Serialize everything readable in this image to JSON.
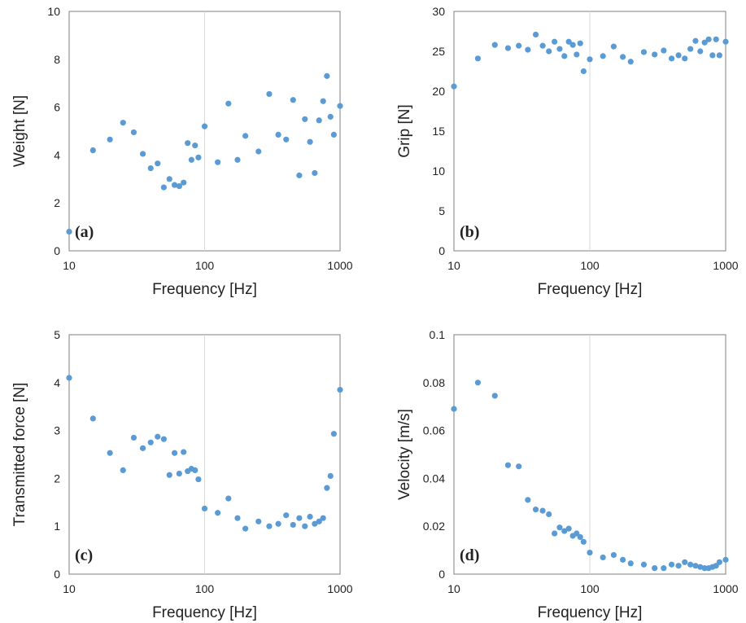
{
  "style": {
    "marker_color": "#5b9bd5",
    "grid_color": "#d9d9d9",
    "axis_color": "#7f7f7f"
  },
  "chart_data": [
    {
      "type": "scatter",
      "panel_label": "(a)",
      "xlabel": "Frequency [Hz]",
      "ylabel": "Weight [N]",
      "xscale": "log",
      "xlim": [
        10,
        1000
      ],
      "ylim": [
        0,
        10
      ],
      "xticks": [
        10,
        100,
        1000
      ],
      "xtick_labels": [
        "10",
        "100",
        "1000"
      ],
      "yticks": [
        0,
        2,
        4,
        6,
        8,
        10
      ],
      "ytick_labels": [
        "0",
        "2",
        "4",
        "6",
        "8",
        "10"
      ],
      "grid": true,
      "points": [
        [
          10,
          0.8
        ],
        [
          15,
          4.2
        ],
        [
          20,
          4.65
        ],
        [
          25,
          5.35
        ],
        [
          30,
          4.95
        ],
        [
          35,
          4.05
        ],
        [
          40,
          3.45
        ],
        [
          45,
          3.65
        ],
        [
          50,
          2.65
        ],
        [
          55,
          3.0
        ],
        [
          60,
          2.75
        ],
        [
          65,
          2.7
        ],
        [
          70,
          2.85
        ],
        [
          75,
          4.5
        ],
        [
          80,
          3.8
        ],
        [
          85,
          4.4
        ],
        [
          90,
          3.9
        ],
        [
          100,
          5.2
        ],
        [
          125,
          3.7
        ],
        [
          150,
          6.15
        ],
        [
          175,
          3.8
        ],
        [
          200,
          4.8
        ],
        [
          250,
          4.15
        ],
        [
          300,
          6.55
        ],
        [
          350,
          4.85
        ],
        [
          400,
          4.65
        ],
        [
          450,
          6.3
        ],
        [
          500,
          3.15
        ],
        [
          550,
          5.5
        ],
        [
          600,
          4.55
        ],
        [
          650,
          3.25
        ],
        [
          700,
          5.45
        ],
        [
          750,
          6.25
        ],
        [
          800,
          7.3
        ],
        [
          850,
          5.6
        ],
        [
          900,
          4.85
        ],
        [
          1000,
          6.05
        ]
      ]
    },
    {
      "type": "scatter",
      "panel_label": "(b)",
      "xlabel": "Frequency [Hz]",
      "ylabel": "Grip [N]",
      "xscale": "log",
      "xlim": [
        10,
        1000
      ],
      "ylim": [
        0,
        30
      ],
      "xticks": [
        10,
        100,
        1000
      ],
      "xtick_labels": [
        "10",
        "100",
        "1000"
      ],
      "yticks": [
        0,
        5,
        10,
        15,
        20,
        25,
        30
      ],
      "ytick_labels": [
        "0",
        "5",
        "10",
        "15",
        "20",
        "25",
        "30"
      ],
      "grid": true,
      "points": [
        [
          10,
          20.6
        ],
        [
          15,
          24.1
        ],
        [
          20,
          25.8
        ],
        [
          25,
          25.4
        ],
        [
          30,
          25.7
        ],
        [
          35,
          25.2
        ],
        [
          40,
          27.1
        ],
        [
          45,
          25.7
        ],
        [
          50,
          25.0
        ],
        [
          55,
          26.2
        ],
        [
          60,
          25.3
        ],
        [
          65,
          24.4
        ],
        [
          70,
          26.2
        ],
        [
          75,
          25.8
        ],
        [
          80,
          24.6
        ],
        [
          85,
          26.0
        ],
        [
          90,
          22.5
        ],
        [
          100,
          24.0
        ],
        [
          125,
          24.4
        ],
        [
          150,
          25.6
        ],
        [
          175,
          24.3
        ],
        [
          200,
          23.7
        ],
        [
          250,
          24.9
        ],
        [
          300,
          24.6
        ],
        [
          350,
          25.1
        ],
        [
          400,
          24.1
        ],
        [
          450,
          24.5
        ],
        [
          500,
          24.1
        ],
        [
          550,
          25.3
        ],
        [
          600,
          26.3
        ],
        [
          650,
          25.0
        ],
        [
          700,
          26.1
        ],
        [
          750,
          26.5
        ],
        [
          800,
          24.5
        ],
        [
          850,
          26.5
        ],
        [
          900,
          24.5
        ],
        [
          1000,
          26.2
        ]
      ]
    },
    {
      "type": "scatter",
      "panel_label": "(c)",
      "xlabel": "Frequency [Hz]",
      "ylabel": "Transmitted force [N]",
      "xscale": "log",
      "xlim": [
        10,
        1000
      ],
      "ylim": [
        0,
        5
      ],
      "xticks": [
        10,
        100,
        1000
      ],
      "xtick_labels": [
        "10",
        "100",
        "1000"
      ],
      "yticks": [
        0,
        1,
        2,
        3,
        4,
        5
      ],
      "ytick_labels": [
        "0",
        "1",
        "2",
        "3",
        "4",
        "5"
      ],
      "grid": true,
      "points": [
        [
          10,
          4.1
        ],
        [
          15,
          3.25
        ],
        [
          20,
          2.53
        ],
        [
          25,
          2.17
        ],
        [
          30,
          2.85
        ],
        [
          35,
          2.63
        ],
        [
          40,
          2.75
        ],
        [
          45,
          2.87
        ],
        [
          50,
          2.82
        ],
        [
          55,
          2.07
        ],
        [
          60,
          2.53
        ],
        [
          65,
          2.1
        ],
        [
          70,
          2.55
        ],
        [
          75,
          2.15
        ],
        [
          80,
          2.2
        ],
        [
          85,
          2.17
        ],
        [
          90,
          1.98
        ],
        [
          100,
          1.37
        ],
        [
          125,
          1.28
        ],
        [
          150,
          1.58
        ],
        [
          175,
          1.17
        ],
        [
          200,
          0.95
        ],
        [
          250,
          1.1
        ],
        [
          300,
          1.0
        ],
        [
          350,
          1.05
        ],
        [
          400,
          1.23
        ],
        [
          450,
          1.03
        ],
        [
          500,
          1.17
        ],
        [
          550,
          1.0
        ],
        [
          600,
          1.2
        ],
        [
          650,
          1.05
        ],
        [
          700,
          1.1
        ],
        [
          750,
          1.17
        ],
        [
          800,
          1.8
        ],
        [
          850,
          2.05
        ],
        [
          900,
          2.93
        ],
        [
          1000,
          3.85
        ]
      ]
    },
    {
      "type": "scatter",
      "panel_label": "(d)",
      "xlabel": "Frequency [Hz]",
      "ylabel": "Velocity [m/s]",
      "xscale": "log",
      "xlim": [
        10,
        1000
      ],
      "ylim": [
        0,
        0.1
      ],
      "xticks": [
        10,
        100,
        1000
      ],
      "xtick_labels": [
        "10",
        "100",
        "1000"
      ],
      "yticks": [
        0,
        0.02,
        0.04,
        0.06,
        0.08,
        0.1
      ],
      "ytick_labels": [
        "0",
        "0.02",
        "0.04",
        "0.06",
        "0.08",
        "0.1"
      ],
      "grid": true,
      "points": [
        [
          10,
          0.069
        ],
        [
          15,
          0.08
        ],
        [
          20,
          0.0745
        ],
        [
          25,
          0.0455
        ],
        [
          30,
          0.045
        ],
        [
          35,
          0.031
        ],
        [
          40,
          0.027
        ],
        [
          45,
          0.0265
        ],
        [
          50,
          0.025
        ],
        [
          55,
          0.017
        ],
        [
          60,
          0.0195
        ],
        [
          65,
          0.018
        ],
        [
          70,
          0.019
        ],
        [
          75,
          0.016
        ],
        [
          80,
          0.017
        ],
        [
          85,
          0.0155
        ],
        [
          90,
          0.0135
        ],
        [
          100,
          0.009
        ],
        [
          125,
          0.007
        ],
        [
          150,
          0.008
        ],
        [
          175,
          0.006
        ],
        [
          200,
          0.0045
        ],
        [
          250,
          0.004
        ],
        [
          300,
          0.0025
        ],
        [
          350,
          0.0025
        ],
        [
          400,
          0.004
        ],
        [
          450,
          0.0035
        ],
        [
          500,
          0.005
        ],
        [
          550,
          0.004
        ],
        [
          600,
          0.0035
        ],
        [
          650,
          0.003
        ],
        [
          700,
          0.0025
        ],
        [
          750,
          0.0025
        ],
        [
          800,
          0.003
        ],
        [
          850,
          0.0035
        ],
        [
          900,
          0.005
        ],
        [
          1000,
          0.006
        ]
      ]
    }
  ]
}
